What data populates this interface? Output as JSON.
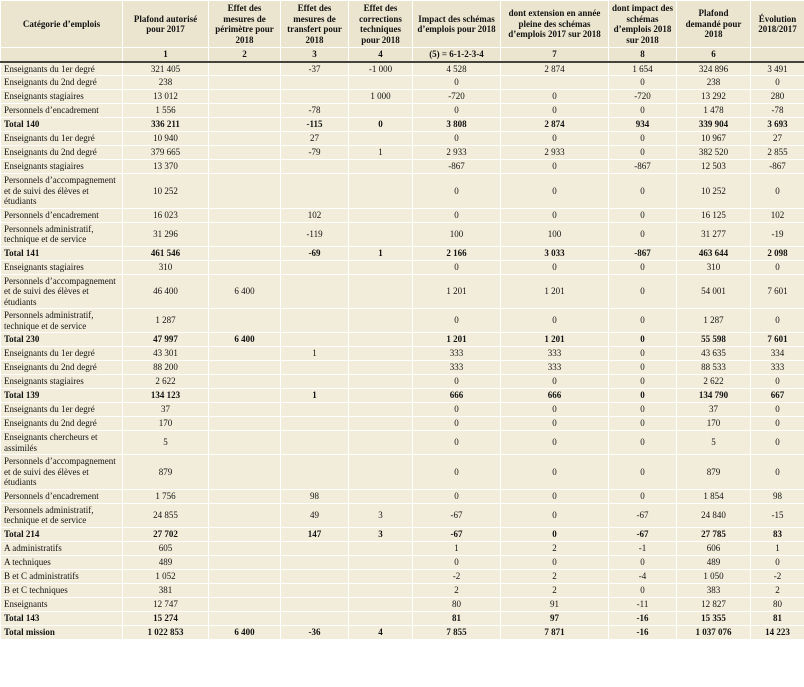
{
  "colors": {
    "cell_bg": "#f2edda",
    "header_bg": "#ebe5cf",
    "grid": "#ffffff",
    "rule": "#44443c"
  },
  "table": {
    "columns": [
      {
        "label": "Catégorie d’emplois",
        "num": ""
      },
      {
        "label": "Plafond autorisé pour 2017",
        "num": "1"
      },
      {
        "label": "Effet des mesures de périmètre pour 2018",
        "num": "2"
      },
      {
        "label": "Effet des mesures de transfert pour 2018",
        "num": "3"
      },
      {
        "label": "Effet des corrections techniques pour 2018",
        "num": "4"
      },
      {
        "label": "Impact des schémas d’emplois pour 2018",
        "num": "(5) = 6-1-2-3-4"
      },
      {
        "label": "dont extension en année pleine des schémas d’emplois 2017 sur 2018",
        "num": "7"
      },
      {
        "label": "dont impact des schémas d’emplois 2018 sur 2018",
        "num": "8"
      },
      {
        "label": "Plafond demandé pour 2018",
        "num": "6"
      },
      {
        "label": "Évolution 2018/2017",
        "num": ""
      }
    ],
    "rows": [
      {
        "label": "Enseignants du 1er degré",
        "total": false,
        "cells": [
          "321 405",
          "",
          "-37",
          "-1 000",
          "4 528",
          "2 874",
          "1 654",
          "324 896",
          "3 491"
        ]
      },
      {
        "label": "Enseignants du 2nd degré",
        "total": false,
        "cells": [
          "238",
          "",
          "",
          "",
          "0",
          "",
          "0",
          "238",
          "0"
        ]
      },
      {
        "label": "Enseignants stagiaires",
        "total": false,
        "cells": [
          "13 012",
          "",
          "",
          "1 000",
          "-720",
          "0",
          "-720",
          "13 292",
          "280"
        ]
      },
      {
        "label": "Personnels d’encadrement",
        "total": false,
        "cells": [
          "1 556",
          "",
          "-78",
          "",
          "0",
          "0",
          "0",
          "1 478",
          "-78"
        ]
      },
      {
        "label": "Total 140",
        "total": true,
        "cells": [
          "336 211",
          "",
          "-115",
          "0",
          "3 808",
          "2 874",
          "934",
          "339 904",
          "3 693"
        ]
      },
      {
        "label": "Enseignants du 1er degré",
        "total": false,
        "cells": [
          "10 940",
          "",
          "27",
          "",
          "0",
          "0",
          "0",
          "10 967",
          "27"
        ]
      },
      {
        "label": "Enseignants du 2nd degré",
        "total": false,
        "cells": [
          "379 665",
          "",
          "-79",
          "1",
          "2 933",
          "2 933",
          "0",
          "382 520",
          "2 855"
        ]
      },
      {
        "label": "Enseignants stagiaires",
        "total": false,
        "cells": [
          "13 370",
          "",
          "",
          "",
          "-867",
          "0",
          "-867",
          "12 503",
          "-867"
        ]
      },
      {
        "label": "Personnels d’accompagnement et de suivi des élèves et étudiants",
        "total": false,
        "cells": [
          "10 252",
          "",
          "",
          "",
          "0",
          "0",
          "0",
          "10 252",
          "0"
        ]
      },
      {
        "label": "Personnels d’encadrement",
        "total": false,
        "cells": [
          "16 023",
          "",
          "102",
          "",
          "0",
          "0",
          "0",
          "16 125",
          "102"
        ]
      },
      {
        "label": "Personnels administratif, technique et de service",
        "total": false,
        "cells": [
          "31 296",
          "",
          "-119",
          "",
          "100",
          "100",
          "0",
          "31 277",
          "-19"
        ]
      },
      {
        "label": "Total 141",
        "total": true,
        "cells": [
          "461 546",
          "",
          "-69",
          "1",
          "2 166",
          "3 033",
          "-867",
          "463 644",
          "2 098"
        ]
      },
      {
        "label": "Enseignants stagiaires",
        "total": false,
        "cells": [
          "310",
          "",
          "",
          "",
          "0",
          "0",
          "0",
          "310",
          "0"
        ]
      },
      {
        "label": "Personnels d’accompagnement et de suivi des élèves et étudiants",
        "total": false,
        "cells": [
          "46 400",
          "6 400",
          "",
          "",
          "1 201",
          "1 201",
          "0",
          "54 001",
          "7 601"
        ]
      },
      {
        "label": "Personnels administratif, technique et de service",
        "total": false,
        "cells": [
          "1 287",
          "",
          "",
          "",
          "0",
          "0",
          "0",
          "1 287",
          "0"
        ]
      },
      {
        "label": "Total 230",
        "total": true,
        "cells": [
          "47 997",
          "6 400",
          "",
          "",
          "1 201",
          "1 201",
          "0",
          "55 598",
          "7 601"
        ]
      },
      {
        "label": "Enseignants du 1er degré",
        "total": false,
        "cells": [
          "43 301",
          "",
          "1",
          "",
          "333",
          "333",
          "0",
          "43 635",
          "334"
        ]
      },
      {
        "label": "Enseignants du 2nd degré",
        "total": false,
        "cells": [
          "88 200",
          "",
          "",
          "",
          "333",
          "333",
          "0",
          "88 533",
          "333"
        ]
      },
      {
        "label": "Enseignants stagiaires",
        "total": false,
        "cells": [
          "2 622",
          "",
          "",
          "",
          "0",
          "0",
          "0",
          "2 622",
          "0"
        ]
      },
      {
        "label": "Total 139",
        "total": true,
        "cells": [
          "134 123",
          "",
          "1",
          "",
          "666",
          "666",
          "0",
          "134 790",
          "667"
        ]
      },
      {
        "label": "Enseignants du 1er degré",
        "total": false,
        "cells": [
          "37",
          "",
          "",
          "",
          "0",
          "0",
          "0",
          "37",
          "0"
        ]
      },
      {
        "label": "Enseignants du 2nd degré",
        "total": false,
        "cells": [
          "170",
          "",
          "",
          "",
          "0",
          "0",
          "0",
          "170",
          "0"
        ]
      },
      {
        "label": "Enseignants chercheurs et assimilés",
        "total": false,
        "cells": [
          "5",
          "",
          "",
          "",
          "0",
          "0",
          "0",
          "5",
          "0"
        ]
      },
      {
        "label": "Personnels d’accompagnement et de suivi des élèves et étudiants",
        "total": false,
        "cells": [
          "879",
          "",
          "",
          "",
          "0",
          "0",
          "0",
          "879",
          "0"
        ]
      },
      {
        "label": "Personnels d’encadrement",
        "total": false,
        "cells": [
          "1 756",
          "",
          "98",
          "",
          "0",
          "0",
          "0",
          "1 854",
          "98"
        ]
      },
      {
        "label": "Personnels administratif, technique et de service",
        "total": false,
        "cells": [
          "24 855",
          "",
          "49",
          "3",
          "-67",
          "0",
          "-67",
          "24 840",
          "-15"
        ]
      },
      {
        "label": "Total 214",
        "total": true,
        "cells": [
          "27 702",
          "",
          "147",
          "3",
          "-67",
          "0",
          "-67",
          "27 785",
          "83"
        ]
      },
      {
        "label": "A administratifs",
        "total": false,
        "cells": [
          "605",
          "",
          "",
          "",
          "1",
          "2",
          "-1",
          "606",
          "1"
        ]
      },
      {
        "label": "A techniques",
        "total": false,
        "cells": [
          "489",
          "",
          "",
          "",
          "0",
          "0",
          "0",
          "489",
          "0"
        ]
      },
      {
        "label": "B et C administratifs",
        "total": false,
        "cells": [
          "1 052",
          "",
          "",
          "",
          "-2",
          "2",
          "-4",
          "1 050",
          "-2"
        ]
      },
      {
        "label": "B et C techniques",
        "total": false,
        "cells": [
          "381",
          "",
          "",
          "",
          "2",
          "2",
          "0",
          "383",
          "2"
        ]
      },
      {
        "label": "Enseignants",
        "total": false,
        "cells": [
          "12 747",
          "",
          "",
          "",
          "80",
          "91",
          "-11",
          "12 827",
          "80"
        ]
      },
      {
        "label": "Total 143",
        "total": true,
        "cells": [
          "15 274",
          "",
          "",
          "",
          "81",
          "97",
          "-16",
          "15 355",
          "81"
        ]
      },
      {
        "label": "Total mission",
        "total": true,
        "cells": [
          "1 022 853",
          "6 400",
          "-36",
          "4",
          "7 855",
          "7 871",
          "-16",
          "1 037 076",
          "14 223"
        ]
      }
    ]
  }
}
